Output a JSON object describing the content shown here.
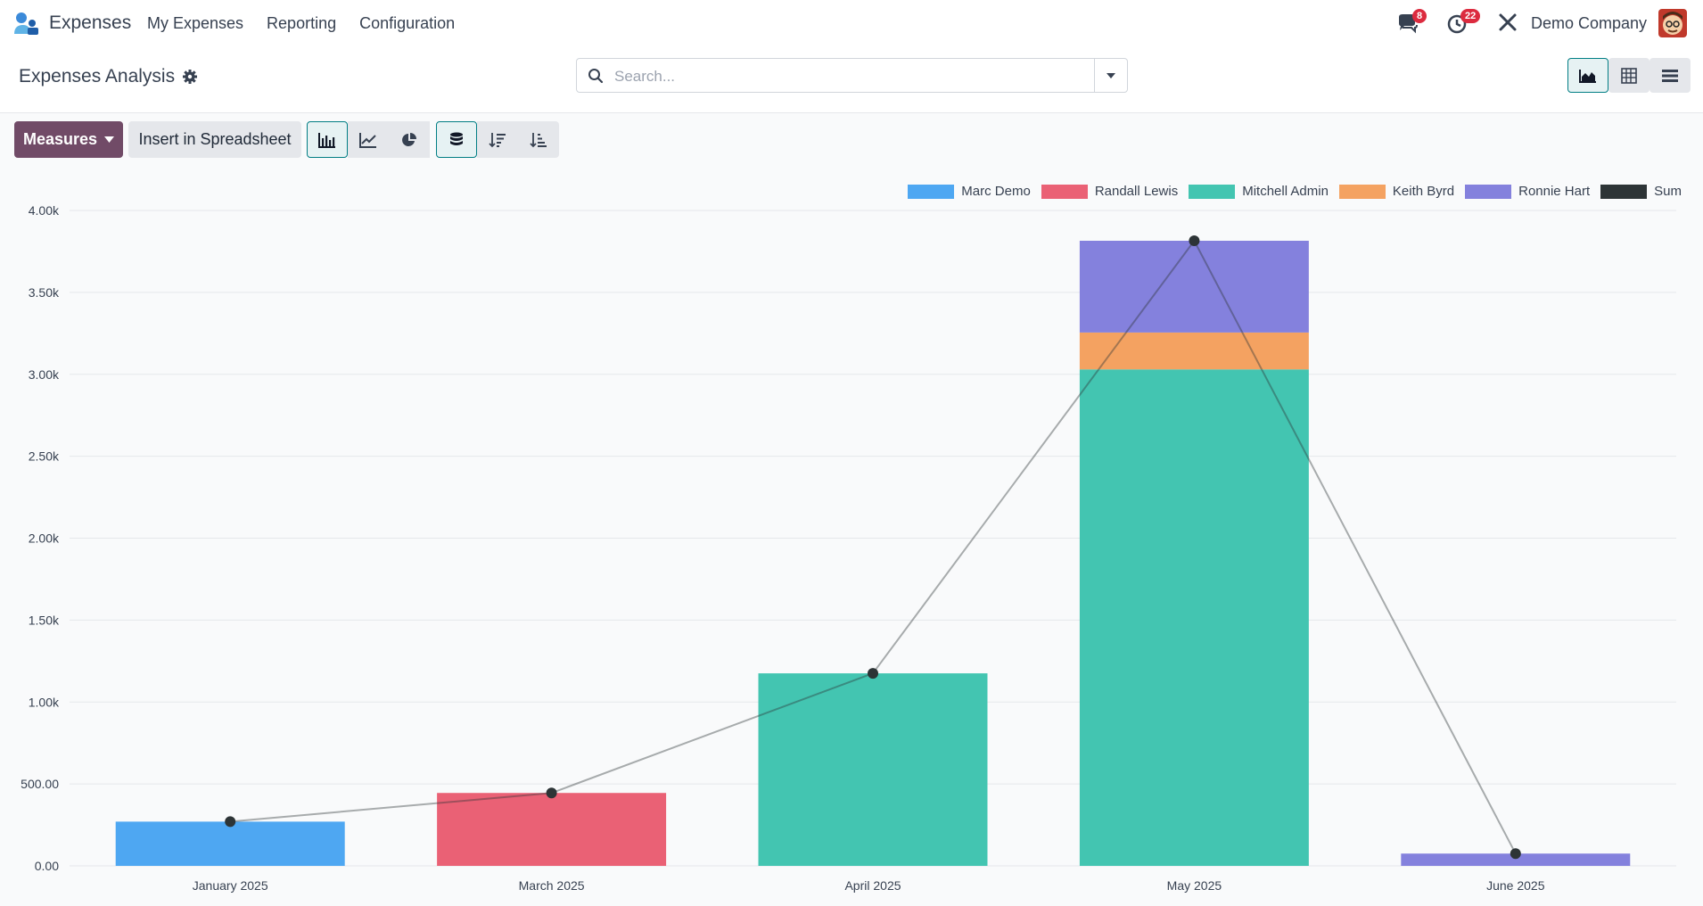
{
  "navbar": {
    "app_name": "Expenses",
    "menu": [
      "My Expenses",
      "Reporting",
      "Configuration"
    ],
    "messages_count": "8",
    "activities_count": "22",
    "company": "Demo Company"
  },
  "control_panel": {
    "title": "Expenses Analysis",
    "search_placeholder": "Search..."
  },
  "toolbar": {
    "measures_label": "Measures",
    "insert_label": "Insert in Spreadsheet"
  },
  "colors": {
    "Marc Demo": "#4ea7f2",
    "Randall Lewis": "#ea6175",
    "Mitchell Admin": "#43c5b1",
    "Keith Byrd": "#f4a261",
    "Ronnie Hart": "#8481dd",
    "Sum": "#2d3436"
  },
  "chart_data": {
    "type": "bar",
    "stacked": true,
    "categories": [
      "January 2025",
      "March 2025",
      "April 2025",
      "May 2025",
      "June 2025"
    ],
    "series": [
      {
        "name": "Marc Demo",
        "values": [
          270,
          0,
          0,
          0,
          0
        ]
      },
      {
        "name": "Randall Lewis",
        "values": [
          0,
          445,
          0,
          0,
          0
        ]
      },
      {
        "name": "Mitchell Admin",
        "values": [
          0,
          0,
          1175,
          3030,
          0
        ]
      },
      {
        "name": "Keith Byrd",
        "values": [
          0,
          0,
          0,
          225,
          0
        ]
      },
      {
        "name": "Ronnie Hart",
        "values": [
          0,
          0,
          0,
          560,
          75
        ]
      }
    ],
    "sum_line": {
      "name": "Sum",
      "values": [
        270,
        445,
        1175,
        3815,
        75
      ]
    },
    "y_ticks": [
      "0.00",
      "500.00",
      "1.00k",
      "1.50k",
      "2.00k",
      "2.50k",
      "3.00k",
      "3.50k",
      "4.00k"
    ],
    "ylim": [
      0,
      4000
    ],
    "legend_position": "top-right",
    "grid": true
  }
}
